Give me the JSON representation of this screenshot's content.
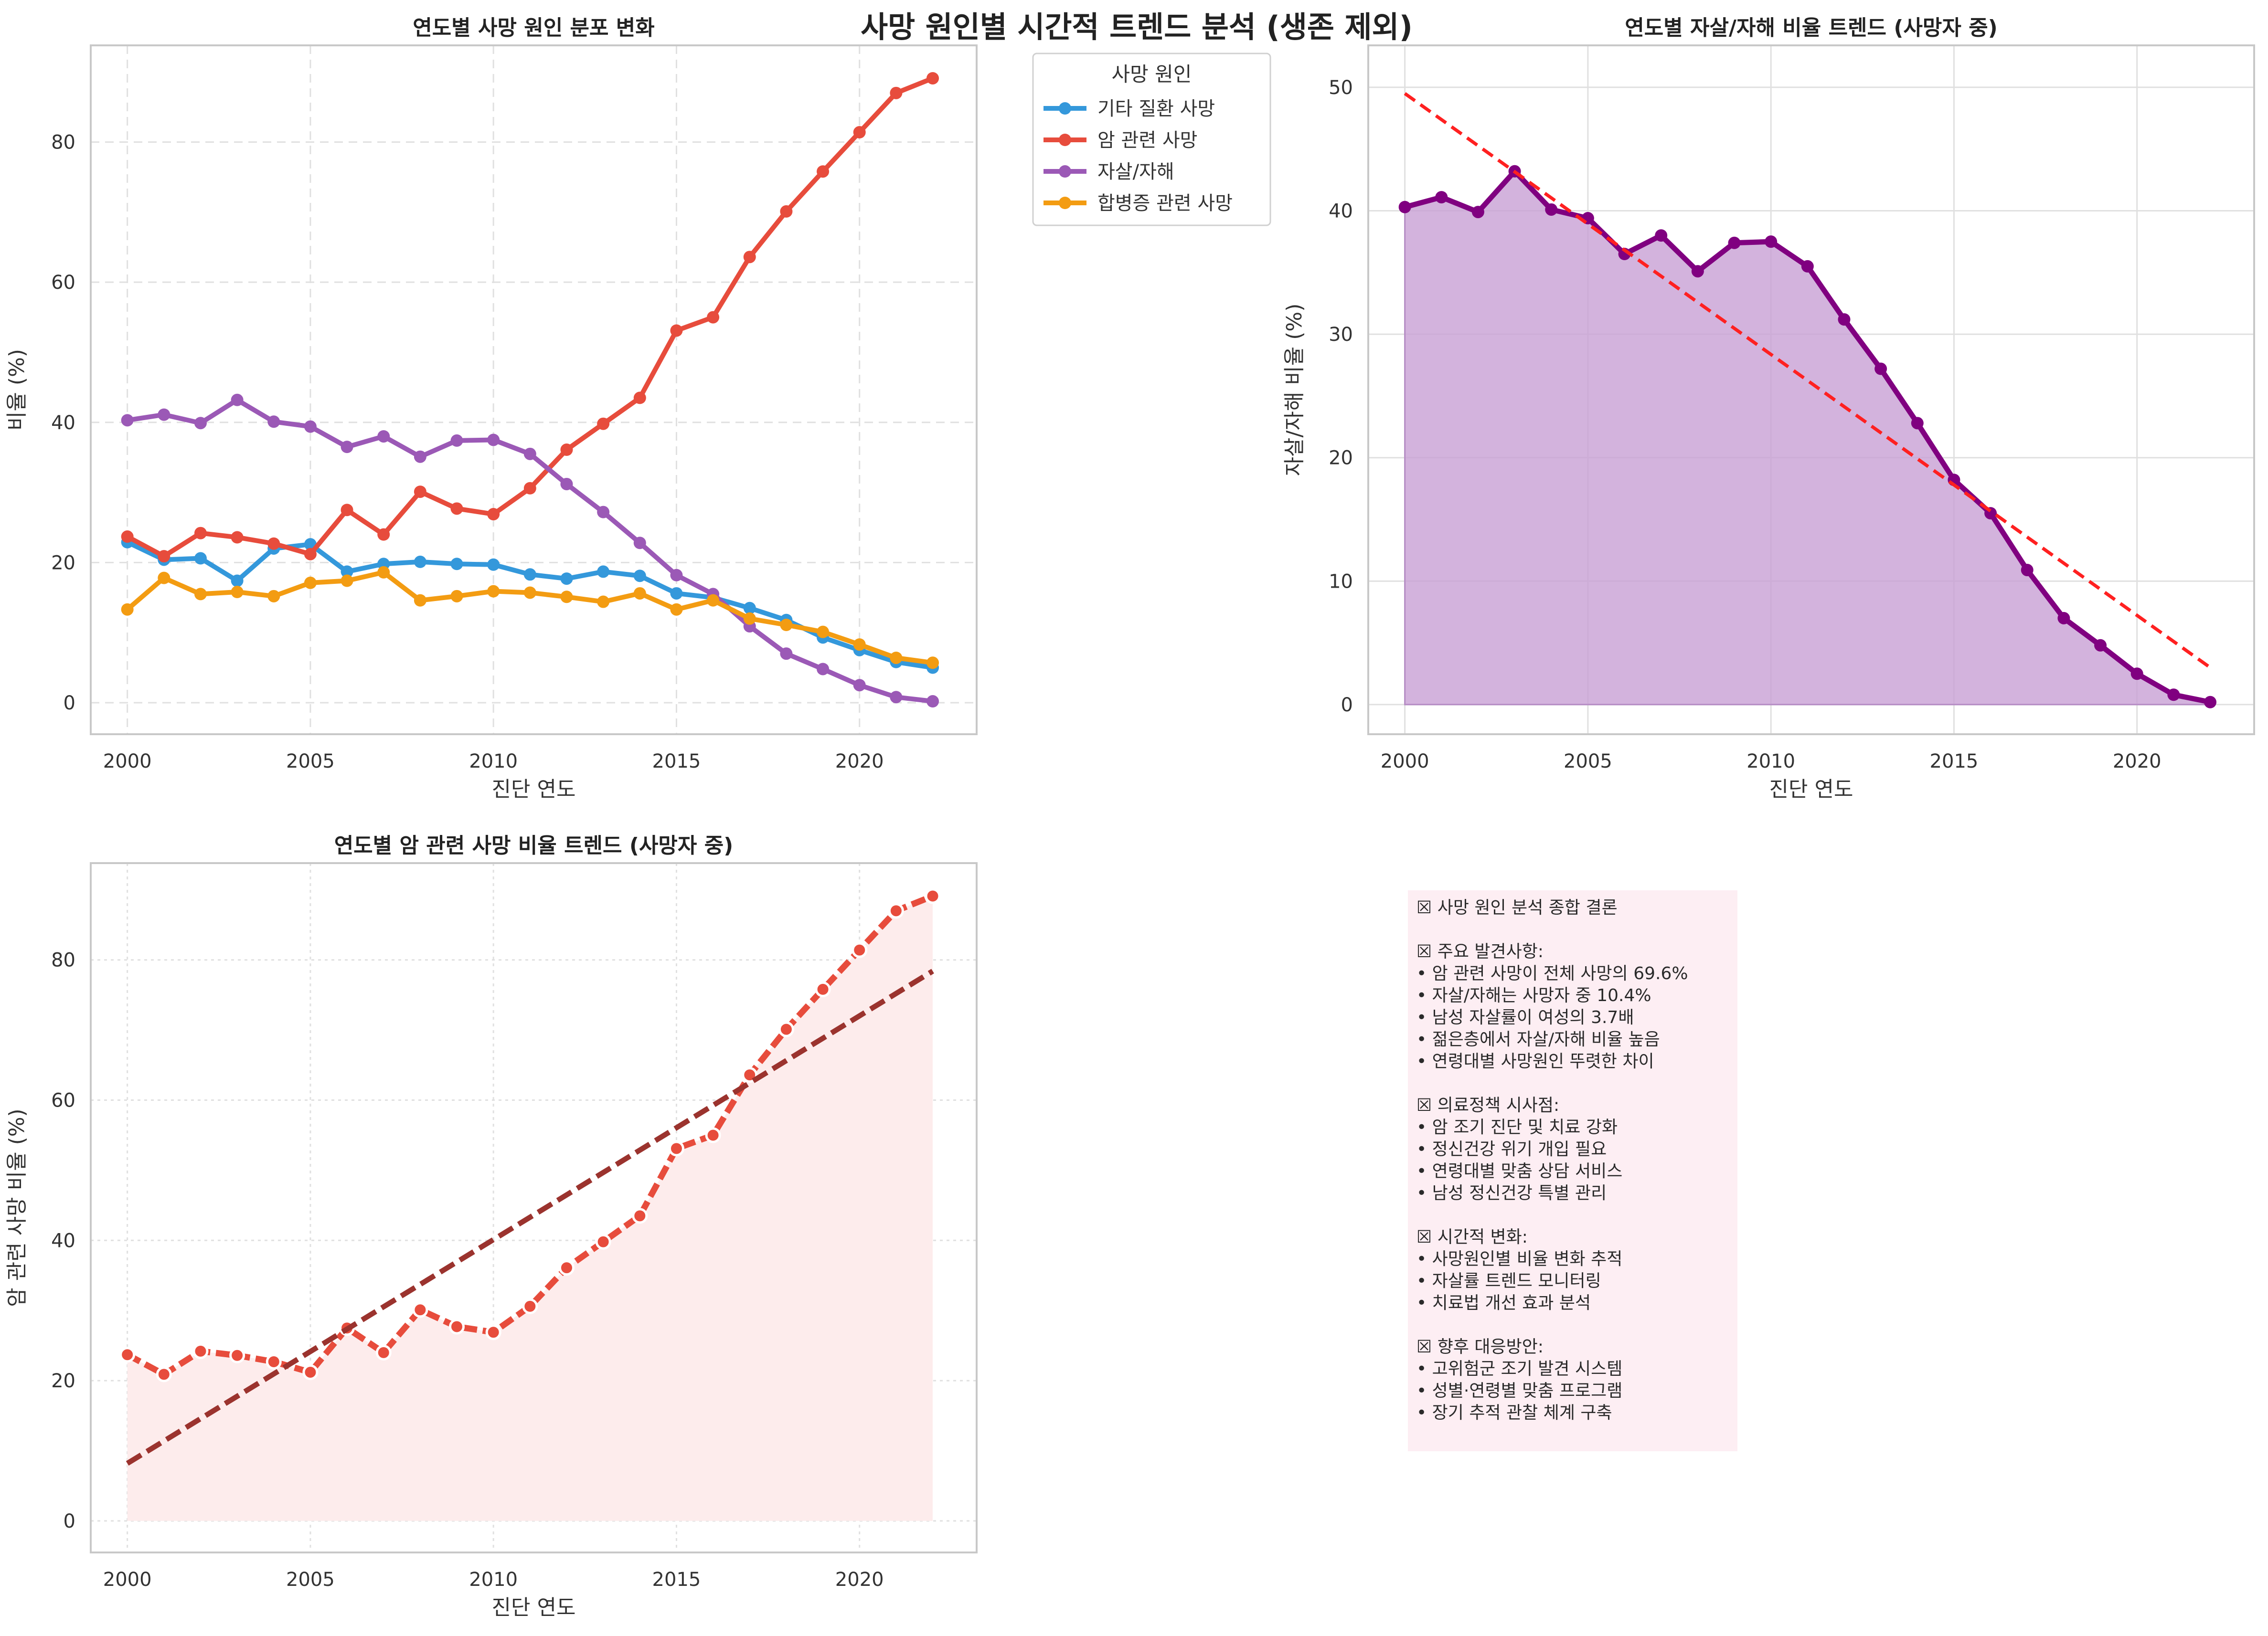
{
  "suptitle": "사망 원인별 시간적 트렌드 분석 (생존 제외)",
  "colors": {
    "other": "#3498db",
    "cancer": "#e74c3c",
    "suicide": "#9b59b6",
    "complication": "#f39c12",
    "suicide_line": "#800080",
    "suicide_fill": "#c8a0d4",
    "suicide_trend": "#ff2020",
    "cancer_trend": "#9b332e",
    "cancer_fill": "#fdecec",
    "summary_bg": "#fdeef3"
  },
  "chart_data": [
    {
      "type": "line",
      "title": "연도별 사망 원인 분포 변화",
      "xlabel": "진단 연도",
      "ylabel": "비율 (%)",
      "xlim": [
        1999,
        2023.2
      ],
      "ylim": [
        -4.5,
        93.8
      ],
      "xticks": [
        "2000",
        "2005",
        "2010",
        "2015",
        "2020"
      ],
      "yticks": [
        "0",
        "20",
        "40",
        "60",
        "80"
      ],
      "grid": true,
      "legend": {
        "title": "사망 원인",
        "placement": "outside upper right"
      },
      "x": [
        2000,
        2001,
        2002,
        2003,
        2004,
        2005,
        2006,
        2007,
        2008,
        2009,
        2010,
        2011,
        2012,
        2013,
        2014,
        2015,
        2016,
        2017,
        2018,
        2019,
        2020,
        2021,
        2022
      ],
      "series": [
        {
          "name": "기타 질환 사망",
          "values": [
            22.9,
            20.4,
            20.6,
            17.4,
            22.0,
            22.6,
            18.7,
            19.8,
            20.1,
            19.8,
            19.7,
            18.3,
            17.7,
            18.7,
            18.1,
            15.6,
            15.0,
            13.5,
            11.8,
            9.3,
            7.5,
            5.8,
            5.0
          ]
        },
        {
          "name": "암 관련 사망",
          "values": [
            23.7,
            20.9,
            24.2,
            23.6,
            22.7,
            21.2,
            27.5,
            24.0,
            30.1,
            27.7,
            26.9,
            30.6,
            36.1,
            39.8,
            43.5,
            53.1,
            55.0,
            63.6,
            70.1,
            75.8,
            81.4,
            87.0,
            89.1
          ]
        },
        {
          "name": "자살/자해",
          "values": [
            40.3,
            41.1,
            39.9,
            43.2,
            40.1,
            39.4,
            36.5,
            38.0,
            35.1,
            37.4,
            37.5,
            35.5,
            31.2,
            27.2,
            22.8,
            18.2,
            15.5,
            10.9,
            7.0,
            4.8,
            2.5,
            0.8,
            0.2
          ]
        },
        {
          "name": "합병증 관련 사망",
          "values": [
            13.3,
            17.8,
            15.5,
            15.8,
            15.2,
            17.1,
            17.4,
            18.6,
            14.6,
            15.2,
            15.9,
            15.7,
            15.1,
            14.4,
            15.6,
            13.3,
            14.6,
            12.0,
            11.1,
            10.1,
            8.3,
            6.4,
            5.7
          ]
        }
      ]
    },
    {
      "type": "area",
      "title": "연도별 자살/자해 비율 트렌드 (사망자 중)",
      "xlabel": "진단 연도",
      "ylabel": "자살/자해 비율 (%)",
      "xlim": [
        1999,
        2023.2
      ],
      "ylim": [
        -2.4,
        53.4
      ],
      "xticks": [
        "2000",
        "2005",
        "2010",
        "2015",
        "2020"
      ],
      "yticks": [
        "0",
        "10",
        "20",
        "30",
        "40",
        "50"
      ],
      "grid": true,
      "x": [
        2000,
        2001,
        2002,
        2003,
        2004,
        2005,
        2006,
        2007,
        2008,
        2009,
        2010,
        2011,
        2012,
        2013,
        2014,
        2015,
        2016,
        2017,
        2018,
        2019,
        2020,
        2021,
        2022
      ],
      "values": [
        40.3,
        41.1,
        39.9,
        43.2,
        40.1,
        39.4,
        36.5,
        38.0,
        35.1,
        37.4,
        37.5,
        35.5,
        31.2,
        27.2,
        22.8,
        18.2,
        15.5,
        10.9,
        7.0,
        4.8,
        2.5,
        0.8,
        0.2
      ],
      "trend": [
        49.5,
        3.0
      ]
    },
    {
      "type": "area",
      "title": "연도별 암 관련 사망 비율 트렌드 (사망자 중)",
      "xlabel": "진단 연도",
      "ylabel": "암 관련 사망 비율 (%)",
      "xlim": [
        1999,
        2023.2
      ],
      "ylim": [
        -4.5,
        93.8
      ],
      "xticks": [
        "2000",
        "2005",
        "2010",
        "2015",
        "2020"
      ],
      "yticks": [
        "0",
        "20",
        "40",
        "60",
        "80"
      ],
      "grid": true,
      "x": [
        2000,
        2001,
        2002,
        2003,
        2004,
        2005,
        2006,
        2007,
        2008,
        2009,
        2010,
        2011,
        2012,
        2013,
        2014,
        2015,
        2016,
        2017,
        2018,
        2019,
        2020,
        2021,
        2022
      ],
      "values": [
        23.7,
        20.9,
        24.2,
        23.6,
        22.7,
        21.2,
        27.5,
        24.0,
        30.1,
        27.7,
        26.9,
        30.6,
        36.1,
        39.8,
        43.5,
        53.1,
        55.0,
        63.6,
        70.1,
        75.8,
        81.4,
        87.0,
        89.1
      ],
      "trend": [
        8.2,
        78.4
      ]
    }
  ],
  "summary": {
    "lines": [
      "☒ 사망 원인 분석 종합 결론",
      "",
      "☒ 주요 발견사항:",
      "• 암 관련 사망이 전체 사망의 69.6%",
      "• 자살/자해는 사망자 중 10.4%",
      "• 남성 자살률이 여성의 3.7배",
      "• 젊은층에서 자살/자해 비율 높음",
      "• 연령대별 사망원인 뚜렷한 차이",
      "",
      "☒ 의료정책 시사점:",
      "• 암 조기 진단 및 치료 강화",
      "• 정신건강 위기 개입 필요",
      "• 연령대별 맞춤 상담 서비스",
      "• 남성 정신건강 특별 관리",
      "",
      "☒ 시간적 변화:",
      "• 사망원인별 비율 변화 추적",
      "• 자살률 트렌드 모니터링",
      "• 치료법 개선 효과 분석",
      "",
      "☒ 향후 대응방안:",
      "• 고위험군 조기 발견 시스템",
      "• 성별·연령별 맞춤 프로그램",
      "• 장기 추적 관찰 체계 구축"
    ]
  }
}
